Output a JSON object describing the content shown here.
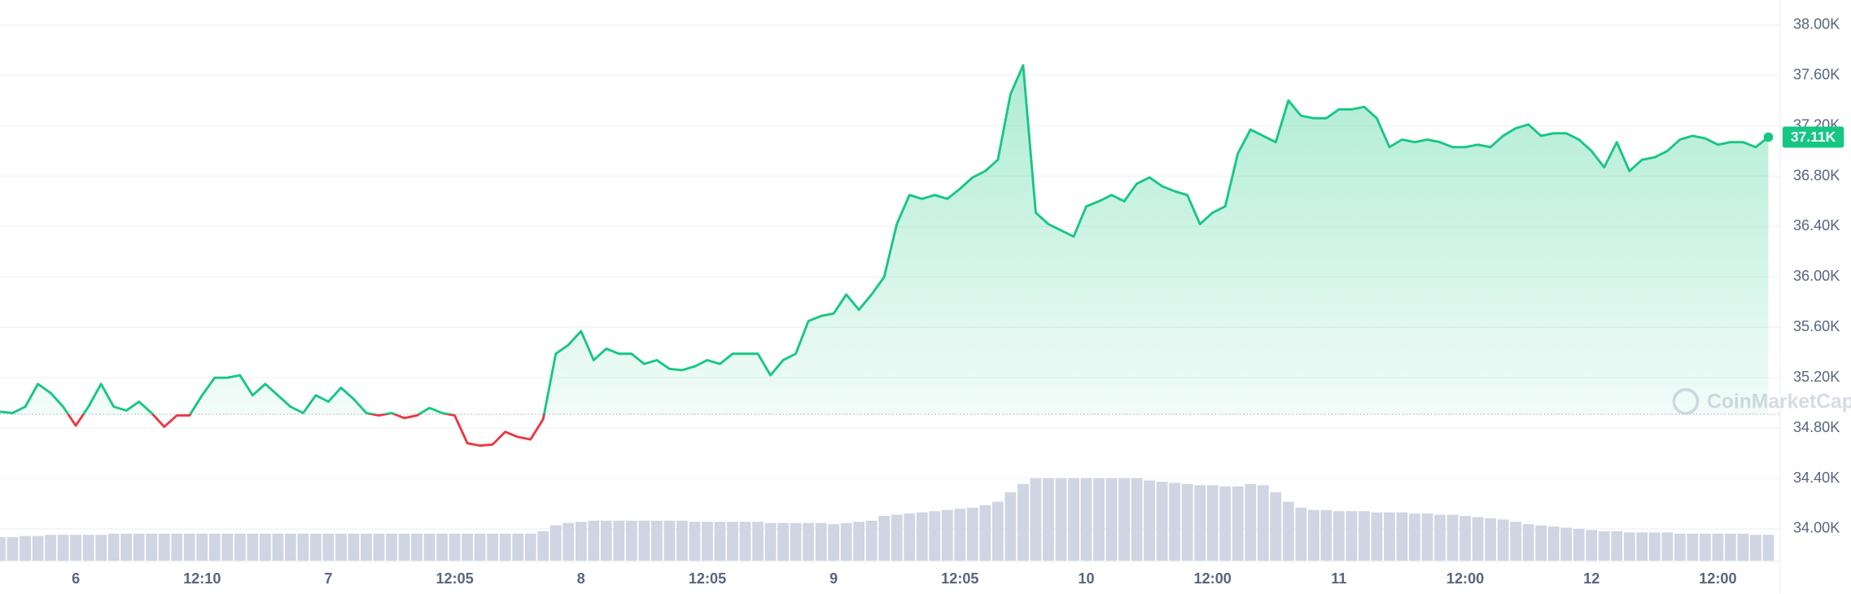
{
  "chart_data": {
    "type": "line",
    "categories": [
      null,
      null,
      null,
      null,
      null,
      null,
      "6",
      null,
      null,
      null,
      null,
      null,
      null,
      null,
      null,
      null,
      "12:10",
      null,
      null,
      null,
      null,
      null,
      null,
      null,
      null,
      null,
      "7",
      null,
      null,
      null,
      null,
      null,
      null,
      null,
      null,
      null,
      "12:05",
      null,
      null,
      null,
      null,
      null,
      null,
      null,
      null,
      null,
      "8",
      null,
      null,
      null,
      null,
      null,
      null,
      null,
      null,
      null,
      "12:05",
      null,
      null,
      null,
      null,
      null,
      null,
      null,
      null,
      null,
      "9",
      null,
      null,
      null,
      null,
      null,
      null,
      null,
      null,
      null,
      "12:05",
      null,
      null,
      null,
      null,
      null,
      null,
      null,
      null,
      null,
      "10",
      null,
      null,
      null,
      null,
      null,
      null,
      null,
      null,
      null,
      "12:00",
      null,
      null,
      null,
      null,
      null,
      null,
      null,
      null,
      null,
      "11",
      null,
      null,
      null,
      null,
      null,
      null,
      null,
      null,
      null,
      "12:00",
      null,
      null,
      null,
      null,
      null,
      null,
      null,
      null,
      null,
      "12",
      null,
      null,
      null,
      null,
      null,
      null,
      null,
      null,
      null,
      "12:00",
      null,
      null,
      null,
      null
    ],
    "values": [
      34930,
      34920,
      34970,
      35150,
      35080,
      34970,
      34820,
      34970,
      35150,
      34970,
      34940,
      35010,
      34920,
      34810,
      34900,
      34900,
      35060,
      35200,
      35200,
      35220,
      35060,
      35150,
      35060,
      34970,
      34920,
      35060,
      35010,
      35120,
      35030,
      34920,
      34900,
      34920,
      34880,
      34900,
      34960,
      34920,
      34900,
      34680,
      34660,
      34670,
      34770,
      34730,
      34710,
      34870,
      35390,
      35460,
      35570,
      35340,
      35430,
      35390,
      35390,
      35310,
      35340,
      35270,
      35260,
      35290,
      35340,
      35310,
      35390,
      35390,
      35390,
      35220,
      35340,
      35390,
      35650,
      35690,
      35710,
      35860,
      35740,
      35860,
      36000,
      36420,
      36650,
      36620,
      36650,
      36620,
      36700,
      36790,
      36840,
      36930,
      37450,
      37680,
      36510,
      36420,
      36370,
      36320,
      36560,
      36600,
      36650,
      36600,
      36740,
      36790,
      36720,
      36680,
      36650,
      36420,
      36510,
      36560,
      36980,
      37170,
      37120,
      37070,
      37400,
      37280,
      37260,
      37260,
      37330,
      37330,
      37350,
      37260,
      37030,
      37090,
      37070,
      37090,
      37070,
      37030,
      37030,
      37050,
      37030,
      37120,
      37180,
      37210,
      37120,
      37140,
      37140,
      37090,
      37000,
      36870,
      37070,
      36840,
      36930,
      36950,
      37000,
      37090,
      37120,
      37100,
      37050,
      37070,
      37070,
      37030,
      37110
    ],
    "baseline": 34910,
    "up_color": "#16c784",
    "down_color": "#ea3943",
    "ylim": [
      33800,
      38200
    ],
    "yticks": [
      {
        "value": 34000,
        "label": "34.00K"
      },
      {
        "value": 34400,
        "label": "34.40K"
      },
      {
        "value": 34800,
        "label": "34.80K"
      },
      {
        "value": 35200,
        "label": "35.20K"
      },
      {
        "value": 35600,
        "label": "35.60K"
      },
      {
        "value": 36000,
        "label": "36.00K"
      },
      {
        "value": 36400,
        "label": "36.40K"
      },
      {
        "value": 36800,
        "label": "36.80K"
      },
      {
        "value": 37200,
        "label": "37.20K"
      },
      {
        "value": 37600,
        "label": "37.60K"
      },
      {
        "value": 38000,
        "label": "38.00K"
      }
    ],
    "grid": true,
    "current_price": {
      "value": 37110,
      "label": "37.11K"
    },
    "volume": {
      "color": "#cfd5e2",
      "ylim": [
        0,
        100
      ],
      "values": [
        20,
        20,
        21,
        21,
        22,
        22,
        22,
        22,
        22,
        23,
        23,
        23,
        23,
        23,
        23,
        23,
        23,
        23,
        23,
        23,
        23,
        23,
        23,
        23,
        23,
        23,
        23,
        23,
        23,
        23,
        23,
        23,
        23,
        23,
        23,
        23,
        23,
        23,
        23,
        23,
        23,
        23,
        23,
        25,
        30,
        32,
        33,
        34,
        34,
        34,
        34,
        34,
        34,
        34,
        34,
        33,
        33,
        33,
        33,
        33,
        33,
        32,
        32,
        32,
        32,
        32,
        31,
        32,
        33,
        34,
        38,
        39,
        40,
        41,
        42,
        43,
        44,
        45,
        47,
        50,
        58,
        65,
        70,
        70,
        70,
        70,
        70,
        70,
        70,
        70,
        70,
        68,
        67,
        66,
        65,
        64,
        64,
        63,
        63,
        65,
        64,
        58,
        50,
        45,
        43,
        43,
        42,
        42,
        42,
        41,
        41,
        41,
        40,
        40,
        39,
        39,
        38,
        37,
        36,
        35,
        33,
        31,
        30,
        29,
        28,
        27,
        26,
        25,
        25,
        24,
        24,
        24,
        24,
        23,
        23,
        23,
        23,
        23,
        23,
        22,
        22
      ]
    },
    "watermark": "CoinMarketCap"
  }
}
